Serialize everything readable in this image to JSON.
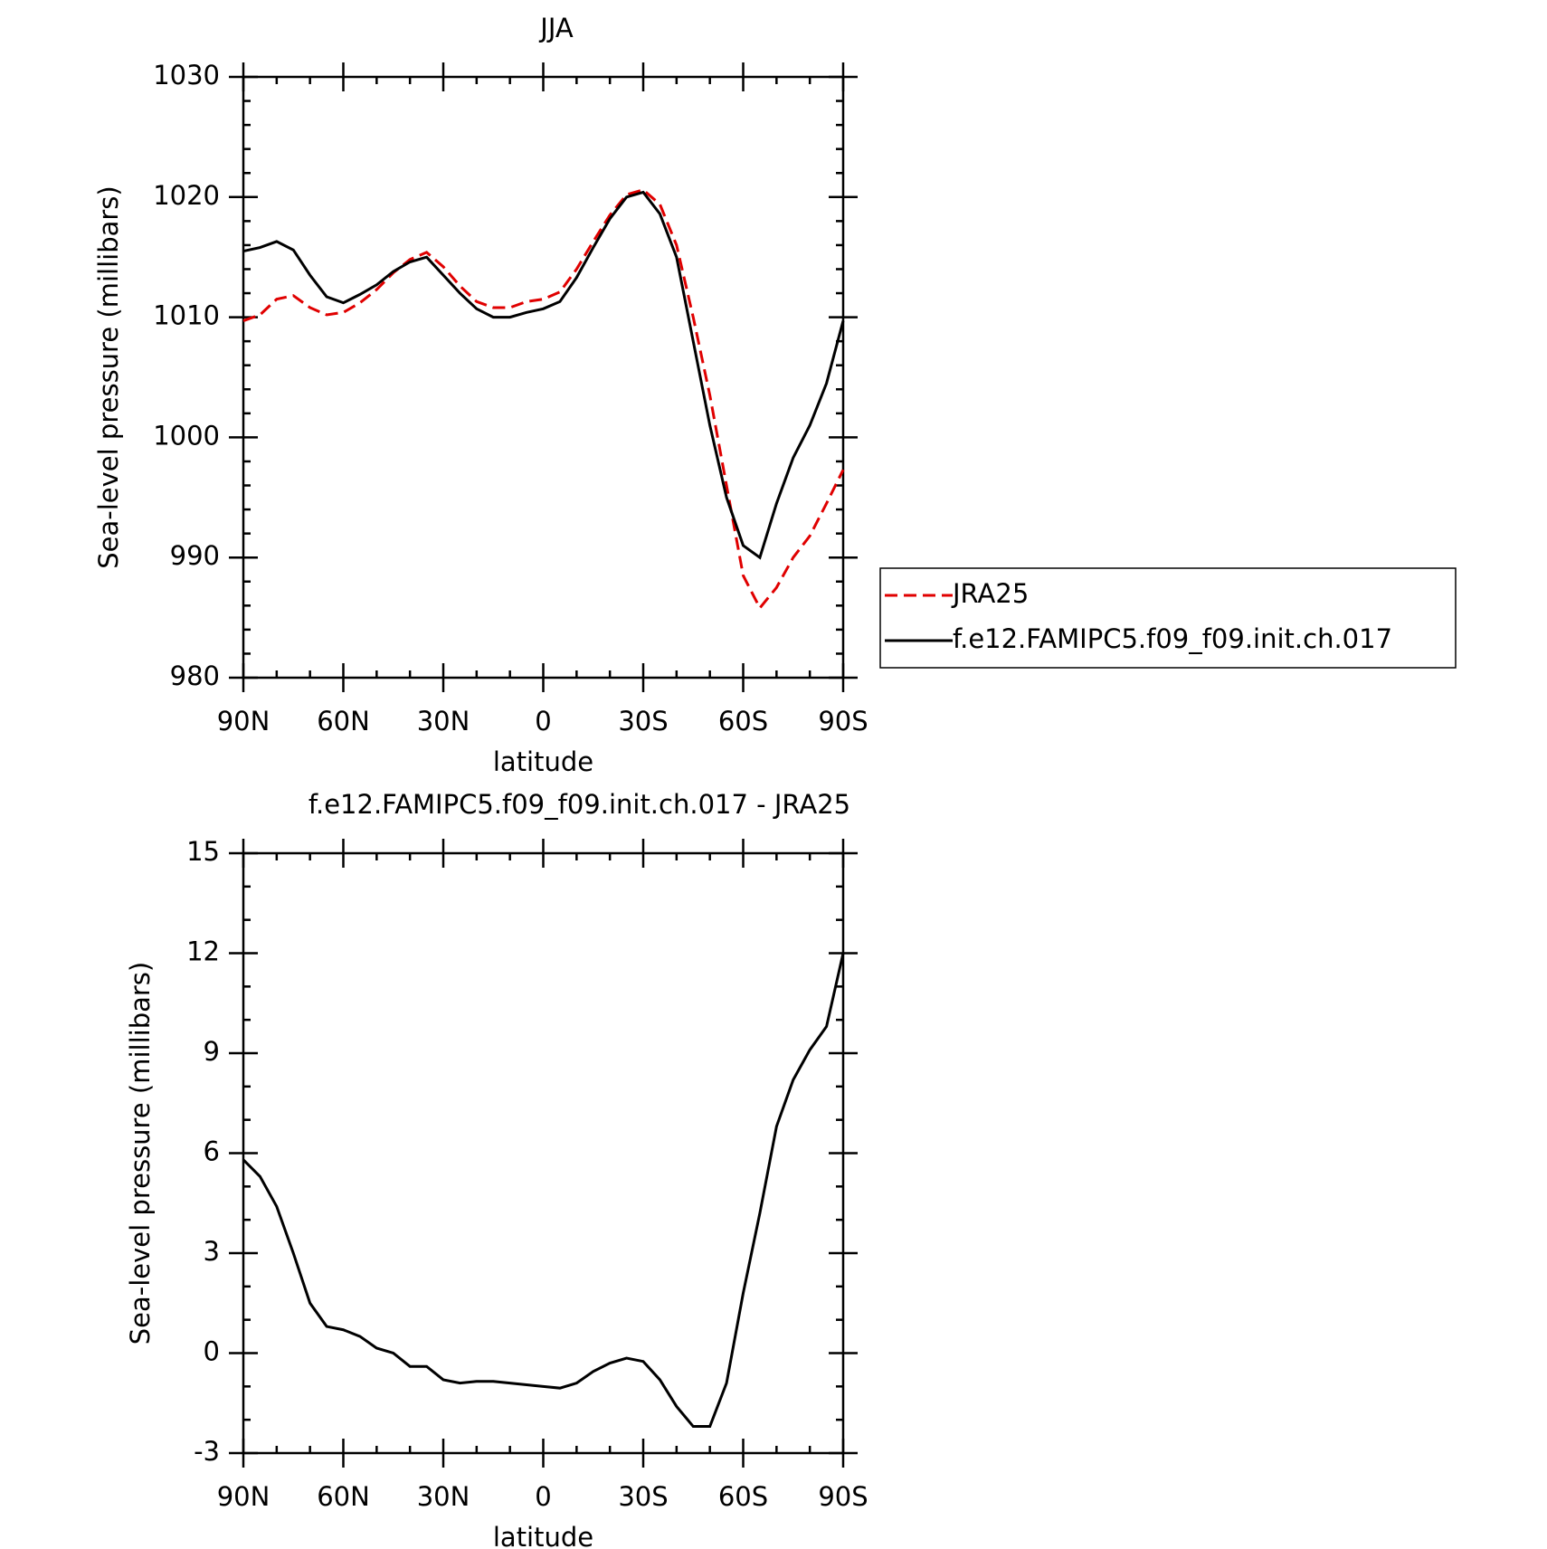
{
  "chart_data": [
    {
      "type": "line",
      "title": "JJA",
      "xlabel": "latitude",
      "ylabel": "Sea-level pressure (millibars)",
      "x": [
        90,
        85,
        80,
        75,
        70,
        65,
        60,
        55,
        50,
        45,
        40,
        35,
        30,
        25,
        20,
        15,
        10,
        5,
        0,
        -5,
        -10,
        -15,
        -20,
        -25,
        -30,
        -35,
        -40,
        -45,
        -50,
        -55,
        -60,
        -65,
        -70,
        -75,
        -80,
        -85,
        -90
      ],
      "xlim": [
        90,
        -90
      ],
      "xticks": [
        {
          "value": 90,
          "label": "90N"
        },
        {
          "value": 60,
          "label": "60N"
        },
        {
          "value": 30,
          "label": "30N"
        },
        0,
        {
          "value": -30,
          "label": "30S"
        },
        {
          "value": -60,
          "label": "60S"
        },
        {
          "value": -90,
          "label": "90S"
        }
      ],
      "ylim": [
        980,
        1030
      ],
      "yticks": [
        980,
        990,
        1000,
        1010,
        1020,
        1030
      ],
      "series": [
        {
          "name": "JRA25",
          "color": "#e00000",
          "dash": true,
          "values": [
            1009.7,
            1010.2,
            1011.5,
            1011.8,
            1010.8,
            1010.2,
            1010.4,
            1011.2,
            1012.3,
            1013.7,
            1014.8,
            1015.4,
            1014.2,
            1012.6,
            1011.3,
            1010.8,
            1010.8,
            1011.3,
            1011.5,
            1012.1,
            1014.0,
            1016.3,
            1018.5,
            1020.2,
            1020.6,
            1019.4,
            1016.0,
            1010.0,
            1003.5,
            996.0,
            988.5,
            985.8,
            987.5,
            990.0,
            991.8,
            994.5,
            997.3
          ]
        },
        {
          "name": "f.e12.FAMIPC5.f09_f09.init.ch.017",
          "color": "#000000",
          "dash": false,
          "values": [
            1015.5,
            1015.8,
            1016.3,
            1015.6,
            1013.5,
            1011.7,
            1011.2,
            1011.9,
            1012.7,
            1013.8,
            1014.6,
            1015.0,
            1013.5,
            1012.0,
            1010.7,
            1010.0,
            1010.0,
            1010.4,
            1010.7,
            1011.3,
            1013.3,
            1015.8,
            1018.2,
            1020.0,
            1020.4,
            1018.6,
            1015.0,
            1008.0,
            1001.0,
            995.0,
            991.0,
            990.0,
            994.5,
            998.3,
            1001.0,
            1004.5,
            1009.7
          ]
        }
      ]
    },
    {
      "type": "line",
      "title": "f.e12.FAMIPC5.f09_f09.init.ch.017 - JRA25",
      "xlabel": "latitude",
      "ylabel": "Sea-level pressure (millibars)",
      "x": [
        90,
        85,
        80,
        75,
        70,
        65,
        60,
        55,
        50,
        45,
        40,
        35,
        30,
        25,
        20,
        15,
        10,
        5,
        0,
        -5,
        -10,
        -15,
        -20,
        -25,
        -30,
        -35,
        -40,
        -45,
        -50,
        -55,
        -60,
        -65,
        -70,
        -75,
        -80,
        -85,
        -90
      ],
      "xlim": [
        90,
        -90
      ],
      "xticks": [
        {
          "value": 90,
          "label": "90N"
        },
        {
          "value": 60,
          "label": "60N"
        },
        {
          "value": 30,
          "label": "30N"
        },
        0,
        {
          "value": -30,
          "label": "30S"
        },
        {
          "value": -60,
          "label": "60S"
        },
        {
          "value": -90,
          "label": "90S"
        }
      ],
      "ylim": [
        -3,
        15
      ],
      "yticks": [
        -3,
        0,
        3,
        6,
        9,
        12,
        15
      ],
      "series": [
        {
          "color": "#000000",
          "dash": false,
          "values": [
            5.8,
            5.3,
            4.4,
            3.0,
            1.5,
            0.8,
            0.7,
            0.5,
            0.15,
            0,
            -0.4,
            -0.4,
            -0.8,
            -0.9,
            -0.85,
            -0.85,
            -0.9,
            -0.95,
            -1.0,
            -1.05,
            -0.9,
            -0.55,
            -0.3,
            -0.15,
            -0.25,
            -0.8,
            -1.6,
            -2.2,
            -2.2,
            -0.9,
            1.8,
            4.2,
            6.8,
            8.2,
            9.1,
            9.8,
            12.0
          ]
        }
      ]
    }
  ]
}
